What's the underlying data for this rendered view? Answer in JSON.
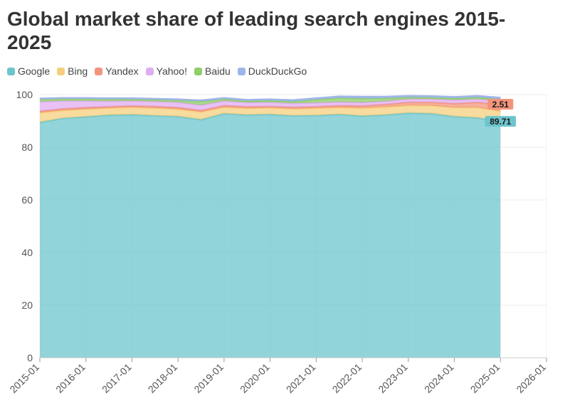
{
  "chart_data": {
    "type": "area",
    "title": "Global market share of leading search engines 2015-2025",
    "xlabel": "",
    "ylabel": "",
    "ylim": [
      0,
      100
    ],
    "x_ticks": [
      "2015-01",
      "2016-01",
      "2017-01",
      "2018-01",
      "2019-01",
      "2020-01",
      "2021-01",
      "2022-01",
      "2023-01",
      "2024-01",
      "2025-01",
      "2026-01"
    ],
    "y_ticks": [
      0,
      20,
      40,
      60,
      80,
      100
    ],
    "x": [
      2015.0,
      2015.5,
      2016.0,
      2016.5,
      2017.0,
      2017.5,
      2018.0,
      2018.5,
      2019.0,
      2019.5,
      2020.0,
      2020.5,
      2021.0,
      2021.5,
      2022.0,
      2022.5,
      2023.0,
      2023.5,
      2024.0,
      2024.5,
      2025.0
    ],
    "x_range": [
      2015.0,
      2026.0
    ],
    "series": [
      {
        "name": "Google",
        "color": "#6cc5cc",
        "values": [
          89.5,
          91.0,
          91.6,
          92.2,
          92.4,
          92.0,
          91.7,
          90.5,
          92.8,
          92.3,
          92.5,
          92.0,
          92.1,
          92.5,
          91.9,
          92.3,
          93.0,
          92.8,
          91.7,
          91.2,
          89.71
        ]
      },
      {
        "name": "Bing",
        "color": "#f5cf7e",
        "values": [
          3.6,
          3.0,
          2.9,
          2.7,
          2.8,
          2.9,
          2.8,
          2.9,
          2.4,
          2.5,
          2.5,
          2.6,
          2.8,
          2.6,
          3.0,
          3.0,
          2.9,
          3.0,
          3.4,
          3.9,
          4.0
        ]
      },
      {
        "name": "Yandex",
        "color": "#f2957c",
        "values": [
          0.6,
          0.6,
          0.6,
          0.5,
          0.5,
          0.6,
          0.6,
          0.6,
          0.6,
          0.6,
          0.5,
          0.6,
          0.5,
          0.7,
          0.8,
          1.0,
          1.2,
          1.3,
          1.5,
          2.0,
          2.51
        ]
      },
      {
        "name": "Yahoo!",
        "color": "#e0aef0",
        "values": [
          3.6,
          3.0,
          2.5,
          2.1,
          1.9,
          1.9,
          2.0,
          2.0,
          1.8,
          1.6,
          1.6,
          1.5,
          1.5,
          1.4,
          1.3,
          1.2,
          1.2,
          1.2,
          1.3,
          1.2,
          1.3
        ]
      },
      {
        "name": "Baidu",
        "color": "#8fcf6a",
        "values": [
          0.9,
          0.8,
          0.8,
          0.8,
          0.7,
          0.7,
          0.8,
          1.4,
          0.7,
          0.6,
          0.7,
          0.7,
          1.2,
          1.5,
          1.5,
          1.1,
          0.7,
          0.6,
          0.7,
          0.7,
          0.7
        ]
      },
      {
        "name": "DuckDuckGo",
        "color": "#9fb5ea",
        "values": [
          0.3,
          0.3,
          0.3,
          0.3,
          0.3,
          0.3,
          0.3,
          0.4,
          0.4,
          0.4,
          0.4,
          0.5,
          0.5,
          0.6,
          0.7,
          0.6,
          0.5,
          0.5,
          0.5,
          0.5,
          0.6
        ]
      }
    ],
    "data_labels": [
      {
        "series": "Yandex",
        "text": "2.51"
      },
      {
        "series": "Google",
        "text": "89.71"
      }
    ],
    "legend_position": "top-left"
  }
}
